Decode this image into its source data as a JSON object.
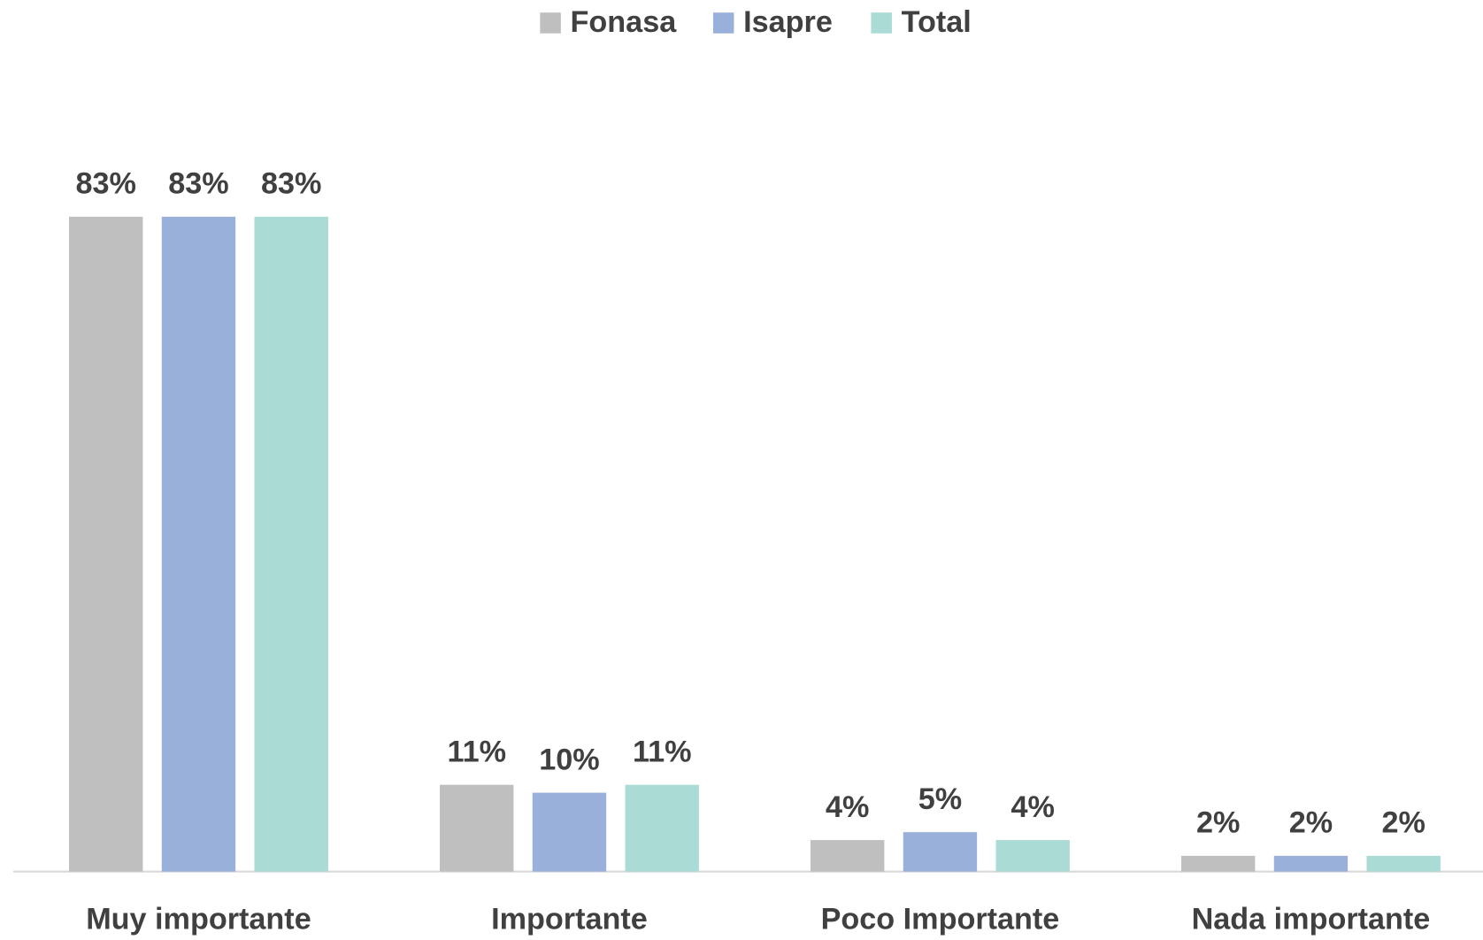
{
  "chart_data": {
    "type": "bar",
    "categories": [
      "Muy importante",
      "Importante",
      "Poco Importante",
      "Nada importante"
    ],
    "series": [
      {
        "name": "Fonasa",
        "color": "#bfbfbf",
        "values": [
          83,
          11,
          4,
          2
        ],
        "value_labels": [
          "83%",
          "11%",
          "4%",
          "2%"
        ]
      },
      {
        "name": "Isapre",
        "color": "#99b0da",
        "values": [
          83,
          10,
          5,
          2
        ],
        "value_labels": [
          "83%",
          "10%",
          "5%",
          "2%"
        ]
      },
      {
        "name": "Total",
        "color": "#aadbd4",
        "values": [
          83,
          11,
          4,
          2
        ],
        "value_labels": [
          "83%",
          "11%",
          "4%",
          "2%"
        ]
      }
    ],
    "ylim": [
      0,
      100
    ],
    "legend": "top"
  }
}
